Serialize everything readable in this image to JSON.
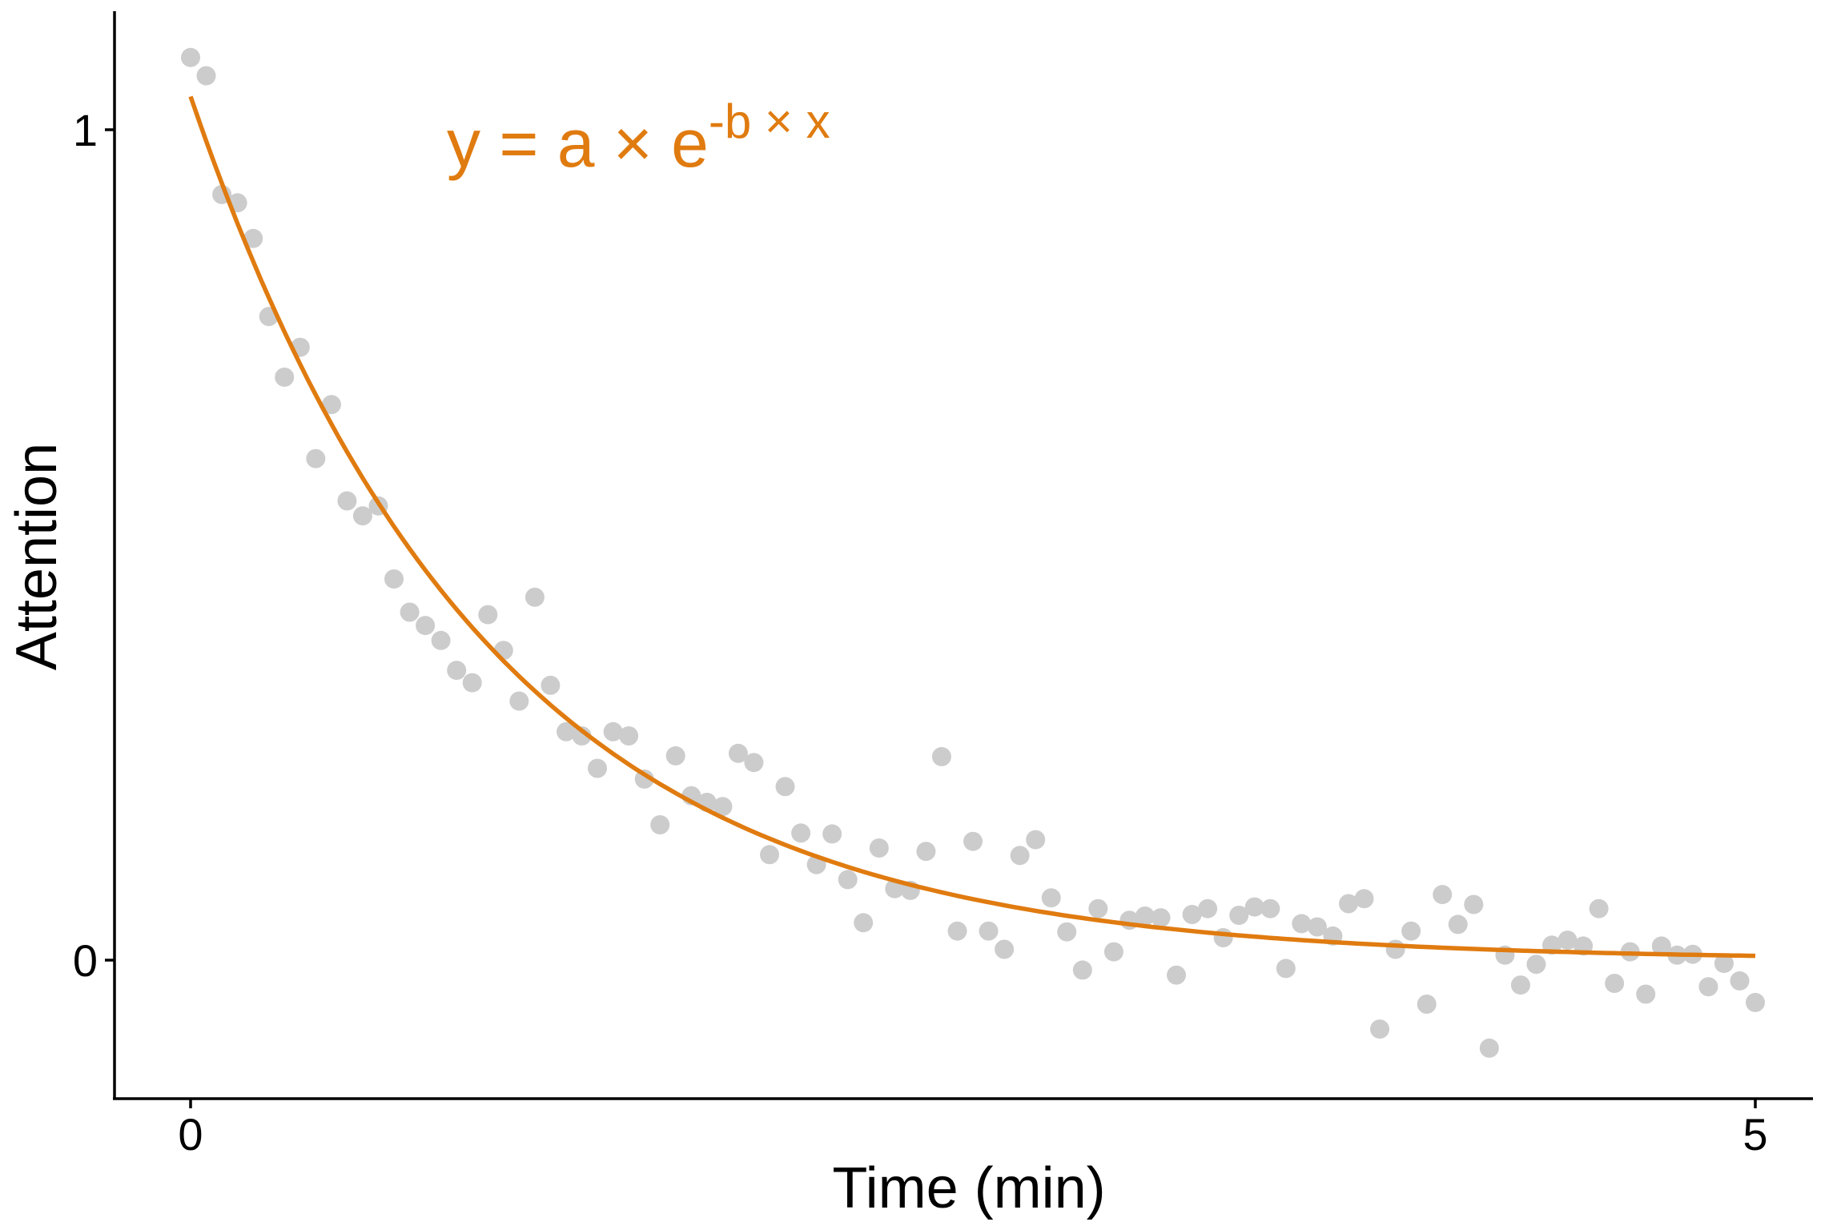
{
  "chart_data": {
    "type": "scatter",
    "xlabel": "Time (min)",
    "ylabel": "Attention",
    "xlim": [
      -0.25,
      5.2
    ],
    "ylim": [
      -0.16,
      1.15
    ],
    "x_ticks": [
      {
        "value": 0,
        "label": "0"
      },
      {
        "value": 5,
        "label": "5"
      }
    ],
    "y_ticks": [
      {
        "value": 0,
        "label": "0"
      },
      {
        "value": 1,
        "label": "1"
      }
    ],
    "grid": false,
    "colors": {
      "points": "#cccccc",
      "fit": "#e07b10",
      "axis": "#000000"
    },
    "annotation": {
      "base": "y = a × e",
      "superscript": "-b × x",
      "position": "top-left"
    },
    "fit": {
      "model": "exponential decay",
      "a": 1.04,
      "b": 1.06,
      "x_range": [
        0,
        5
      ]
    },
    "points": [
      [
        0.0,
        1.087
      ],
      [
        0.05,
        1.065
      ],
      [
        0.1,
        0.922
      ],
      [
        0.15,
        0.912
      ],
      [
        0.2,
        0.869
      ],
      [
        0.25,
        0.775
      ],
      [
        0.3,
        0.702
      ],
      [
        0.35,
        0.738
      ],
      [
        0.4,
        0.604
      ],
      [
        0.45,
        0.669
      ],
      [
        0.5,
        0.553
      ],
      [
        0.55,
        0.535
      ],
      [
        0.6,
        0.547
      ],
      [
        0.65,
        0.459
      ],
      [
        0.7,
        0.419
      ],
      [
        0.75,
        0.403
      ],
      [
        0.8,
        0.385
      ],
      [
        0.85,
        0.349
      ],
      [
        0.9,
        0.334
      ],
      [
        0.95,
        0.416
      ],
      [
        1.0,
        0.373
      ],
      [
        1.05,
        0.312
      ],
      [
        1.1,
        0.437
      ],
      [
        1.15,
        0.331
      ],
      [
        1.2,
        0.275
      ],
      [
        1.25,
        0.27
      ],
      [
        1.3,
        0.231
      ],
      [
        1.35,
        0.275
      ],
      [
        1.4,
        0.27
      ],
      [
        1.45,
        0.218
      ],
      [
        1.5,
        0.163
      ],
      [
        1.55,
        0.246
      ],
      [
        1.6,
        0.198
      ],
      [
        1.65,
        0.19
      ],
      [
        1.7,
        0.185
      ],
      [
        1.75,
        0.249
      ],
      [
        1.8,
        0.238
      ],
      [
        1.85,
        0.127
      ],
      [
        1.9,
        0.209
      ],
      [
        1.95,
        0.153
      ],
      [
        2.0,
        0.115
      ],
      [
        2.05,
        0.152
      ],
      [
        2.1,
        0.097
      ],
      [
        2.15,
        0.045
      ],
      [
        2.2,
        0.135
      ],
      [
        2.25,
        0.086
      ],
      [
        2.3,
        0.084
      ],
      [
        2.35,
        0.131
      ],
      [
        2.4,
        0.245
      ],
      [
        2.45,
        0.035
      ],
      [
        2.5,
        0.143
      ],
      [
        2.55,
        0.035
      ],
      [
        2.6,
        0.013
      ],
      [
        2.65,
        0.126
      ],
      [
        2.7,
        0.145
      ],
      [
        2.75,
        0.075
      ],
      [
        2.8,
        0.034
      ],
      [
        2.85,
        -0.012
      ],
      [
        2.9,
        0.062
      ],
      [
        2.95,
        0.01
      ],
      [
        3.0,
        0.048
      ],
      [
        3.05,
        0.053
      ],
      [
        3.1,
        0.051
      ],
      [
        3.15,
        -0.018
      ],
      [
        3.2,
        0.055
      ],
      [
        3.25,
        0.062
      ],
      [
        3.3,
        0.027
      ],
      [
        3.35,
        0.054
      ],
      [
        3.4,
        0.064
      ],
      [
        3.45,
        0.062
      ],
      [
        3.5,
        -0.01
      ],
      [
        3.55,
        0.044
      ],
      [
        3.6,
        0.04
      ],
      [
        3.65,
        0.029
      ],
      [
        3.7,
        0.068
      ],
      [
        3.75,
        0.074
      ],
      [
        3.8,
        -0.083
      ],
      [
        3.85,
        0.013
      ],
      [
        3.9,
        0.035
      ],
      [
        3.95,
        -0.053
      ],
      [
        4.0,
        0.079
      ],
      [
        4.05,
        0.043
      ],
      [
        4.1,
        0.067
      ],
      [
        4.15,
        -0.106
      ],
      [
        4.2,
        0.006
      ],
      [
        4.25,
        -0.03
      ],
      [
        4.3,
        -0.005
      ],
      [
        4.35,
        0.018
      ],
      [
        4.4,
        0.024
      ],
      [
        4.45,
        0.017
      ],
      [
        4.5,
        0.062
      ],
      [
        4.55,
        -0.028
      ],
      [
        4.6,
        0.01
      ],
      [
        4.65,
        -0.041
      ],
      [
        4.7,
        0.017
      ],
      [
        4.75,
        0.006
      ],
      [
        4.8,
        0.007
      ],
      [
        4.85,
        -0.032
      ],
      [
        4.9,
        -0.004
      ],
      [
        4.95,
        -0.025
      ],
      [
        5.0,
        -0.051
      ]
    ]
  }
}
